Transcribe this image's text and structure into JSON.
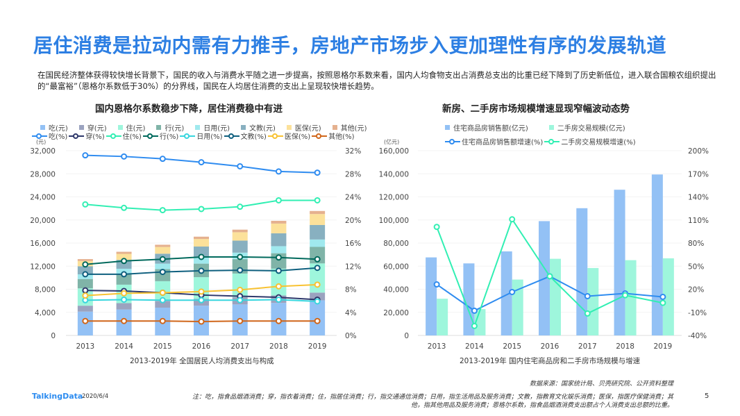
{
  "title": "居住消费是拉动内需有力推手，房地产市场步入更加理性有序的发展轨道",
  "intro": "在国民经济整体获得较快增长背景下，国民的收入与消费水平随之进一步提高，按照恩格尔系数来看，国内人均食物支出占消费总支出的比重已经下降到了历史新低位，进入联合国粮农组织提出的“最富裕”（恩格尔系数低于30%）的分界线，国民在人均居住消费的支出上呈现较快增长趋势。",
  "colors": {
    "accent": "#2d7fe3"
  },
  "chart_data": [
    {
      "type": "bar+line",
      "title": "国内恩格尔系数稳步下降，居住消费稳中有进",
      "caption": "2013-2019年  全国居民人均消费支出与构成",
      "left_unit": "(元)",
      "categories": [
        "2013",
        "2014",
        "2015",
        "2016",
        "2017",
        "2018",
        "2019"
      ],
      "ylim": [
        0,
        32000
      ],
      "y2lim": [
        0,
        32
      ],
      "yticks": [
        "0",
        "4,000",
        "8,000",
        "12,000",
        "16,000",
        "20,000",
        "24,000",
        "28,000",
        "32,000"
      ],
      "y2ticks": [
        "0%",
        "4%",
        "8%",
        "12%",
        "16%",
        "20%",
        "24%",
        "28%",
        "32%"
      ],
      "stack": "stacked",
      "bar_series": [
        {
          "name": "吃(元)",
          "color": "#93c1f5",
          "values": [
            4127,
            4494,
            4814,
            5151,
            5374,
            5631,
            6084
          ]
        },
        {
          "name": "穿(元)",
          "color": "#9ba3bf",
          "values": [
            1027,
            1099,
            1164,
            1203,
            1238,
            1289,
            1338
          ]
        },
        {
          "name": "住(元)",
          "color": "#9ef6dc",
          "values": [
            2999,
            3201,
            3419,
            3746,
            4107,
            4647,
            5055
          ]
        },
        {
          "name": "行(元)",
          "color": "#80b4a8",
          "values": [
            1627,
            1869,
            2087,
            2338,
            2499,
            2675,
            2862
          ]
        },
        {
          "name": "日用(元)",
          "color": "#a0e9ee",
          "values": [
            806,
            890,
            951,
            1044,
            1121,
            1223,
            1281
          ]
        },
        {
          "name": "文教(元)",
          "color": "#88b0c0",
          "values": [
            1398,
            1536,
            1723,
            1915,
            2086,
            2226,
            2513
          ]
        },
        {
          "name": "医保(元)",
          "color": "#fce19a",
          "values": [
            912,
            1045,
            1165,
            1307,
            1451,
            1685,
            1902
          ]
        },
        {
          "name": "其他(元)",
          "color": "#e5b18f",
          "values": [
            325,
            358,
            389,
            406,
            447,
            477,
            524
          ]
        }
      ],
      "line_series": [
        {
          "name": "吃(%)",
          "color": "#2f8cf0",
          "values": [
            31.2,
            31.0,
            30.6,
            30.0,
            29.3,
            28.4,
            28.2
          ]
        },
        {
          "name": "穿(%)",
          "color": "#2e386b",
          "values": [
            7.8,
            7.7,
            7.4,
            7.0,
            6.8,
            6.6,
            6.2
          ]
        },
        {
          "name": "住(%)",
          "color": "#31efb3",
          "values": [
            22.7,
            22.1,
            21.7,
            21.9,
            22.3,
            23.4,
            23.4
          ]
        },
        {
          "name": "行(%)",
          "color": "#00695c",
          "values": [
            12.3,
            12.9,
            13.2,
            13.6,
            13.6,
            13.5,
            13.2
          ]
        },
        {
          "name": "日用(%)",
          "color": "#38d6de",
          "values": [
            6.1,
            6.2,
            6.1,
            6.1,
            6.1,
            6.2,
            5.9
          ]
        },
        {
          "name": "文教(%)",
          "color": "#0e5f7e",
          "values": [
            10.6,
            10.6,
            11.0,
            11.2,
            11.3,
            11.2,
            11.7
          ]
        },
        {
          "name": "医保(%)",
          "color": "#f8c232",
          "values": [
            6.9,
            7.3,
            7.4,
            7.6,
            7.9,
            8.5,
            8.8
          ]
        },
        {
          "name": "其他(%)",
          "color": "#d0661a",
          "values": [
            2.5,
            2.5,
            2.5,
            2.4,
            2.5,
            2.5,
            2.5
          ]
        }
      ],
      "grid": true
    },
    {
      "type": "bar+line",
      "title": "新房、二手房市场规模增速显现窄幅波动态势",
      "caption": "2013-2019年  国内住宅商品房和二手房市场规模与增速",
      "left_unit": "(亿元)",
      "categories": [
        "2013",
        "2014",
        "2015",
        "2016",
        "2017",
        "2018",
        "2019"
      ],
      "ylim": [
        0,
        160000
      ],
      "y2lim": [
        -40,
        200
      ],
      "yticks": [
        "0",
        "20,000",
        "40,000",
        "60,000",
        "80,000",
        "100,000",
        "120,000",
        "140,000",
        "160,000"
      ],
      "y2ticks": [
        "-40%",
        "-10%",
        "20%",
        "50%",
        "80%",
        "110%",
        "140%",
        "170%",
        "200%"
      ],
      "stack": "grouped",
      "bar_series": [
        {
          "name": "住宅商品房销售额(亿元)",
          "color": "#93c1f5",
          "values": [
            67600,
            62400,
            72800,
            99000,
            110200,
            126200,
            139400
          ]
        },
        {
          "name": "二手房交易规模(亿元)",
          "color": "#9ef6dc",
          "values": [
            31800,
            22800,
            48400,
            66400,
            58400,
            65200,
            66800
          ]
        }
      ],
      "line_series": [
        {
          "name": "住宅商品房销售额增速(%)",
          "color": "#2f8cf0",
          "values": [
            26.3,
            -7.9,
            16.4,
            36.8,
            11.0,
            14.6,
            10.1
          ]
        },
        {
          "name": "二手房交易规模增速(%)",
          "color": "#31efb3",
          "values": [
            101,
            -27.7,
            110.9,
            36.8,
            -11.5,
            12.2,
            2.3
          ]
        }
      ],
      "grid": true
    }
  ],
  "footer": {
    "source": "数据来源：国家统计局、贝壳研究院、公开资料整理",
    "note": "注：吃，指食品烟酒消费；穿，指衣着消费；住，指居住消费；行，指交通通信消费；日用，指生活用品及服务消费；文教，指教育文化娱乐消费；医保，指医疗保健消费；其他，指其他用品及服务消费；恩格尔系数，指食品烟酒消费支出额占个人消费支出总额的比重。",
    "logo": "TalkingData",
    "date": "2020/6/4",
    "page": "5"
  }
}
